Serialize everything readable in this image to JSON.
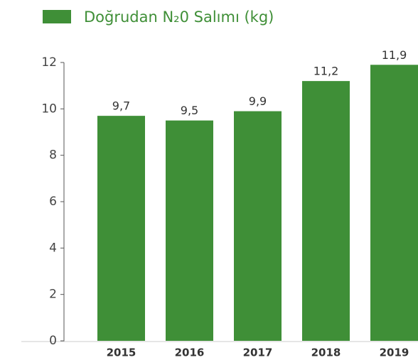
{
  "chart_data": {
    "type": "bar",
    "series": [
      {
        "name": "Doğrudan N₂0 Salımı (kg)",
        "color": "#3f8f37",
        "values": [
          9.7,
          9.5,
          9.9,
          11.2,
          11.9
        ],
        "value_labels": [
          "9,7",
          "9,5",
          "9,9",
          "11,2",
          "11,9"
        ]
      }
    ],
    "categories": [
      "2015",
      "2016",
      "2017",
      "2018",
      "2019"
    ],
    "ylim": [
      0,
      12
    ],
    "yticks": [
      0,
      2,
      4,
      6,
      8,
      10,
      12
    ],
    "grid": false
  }
}
